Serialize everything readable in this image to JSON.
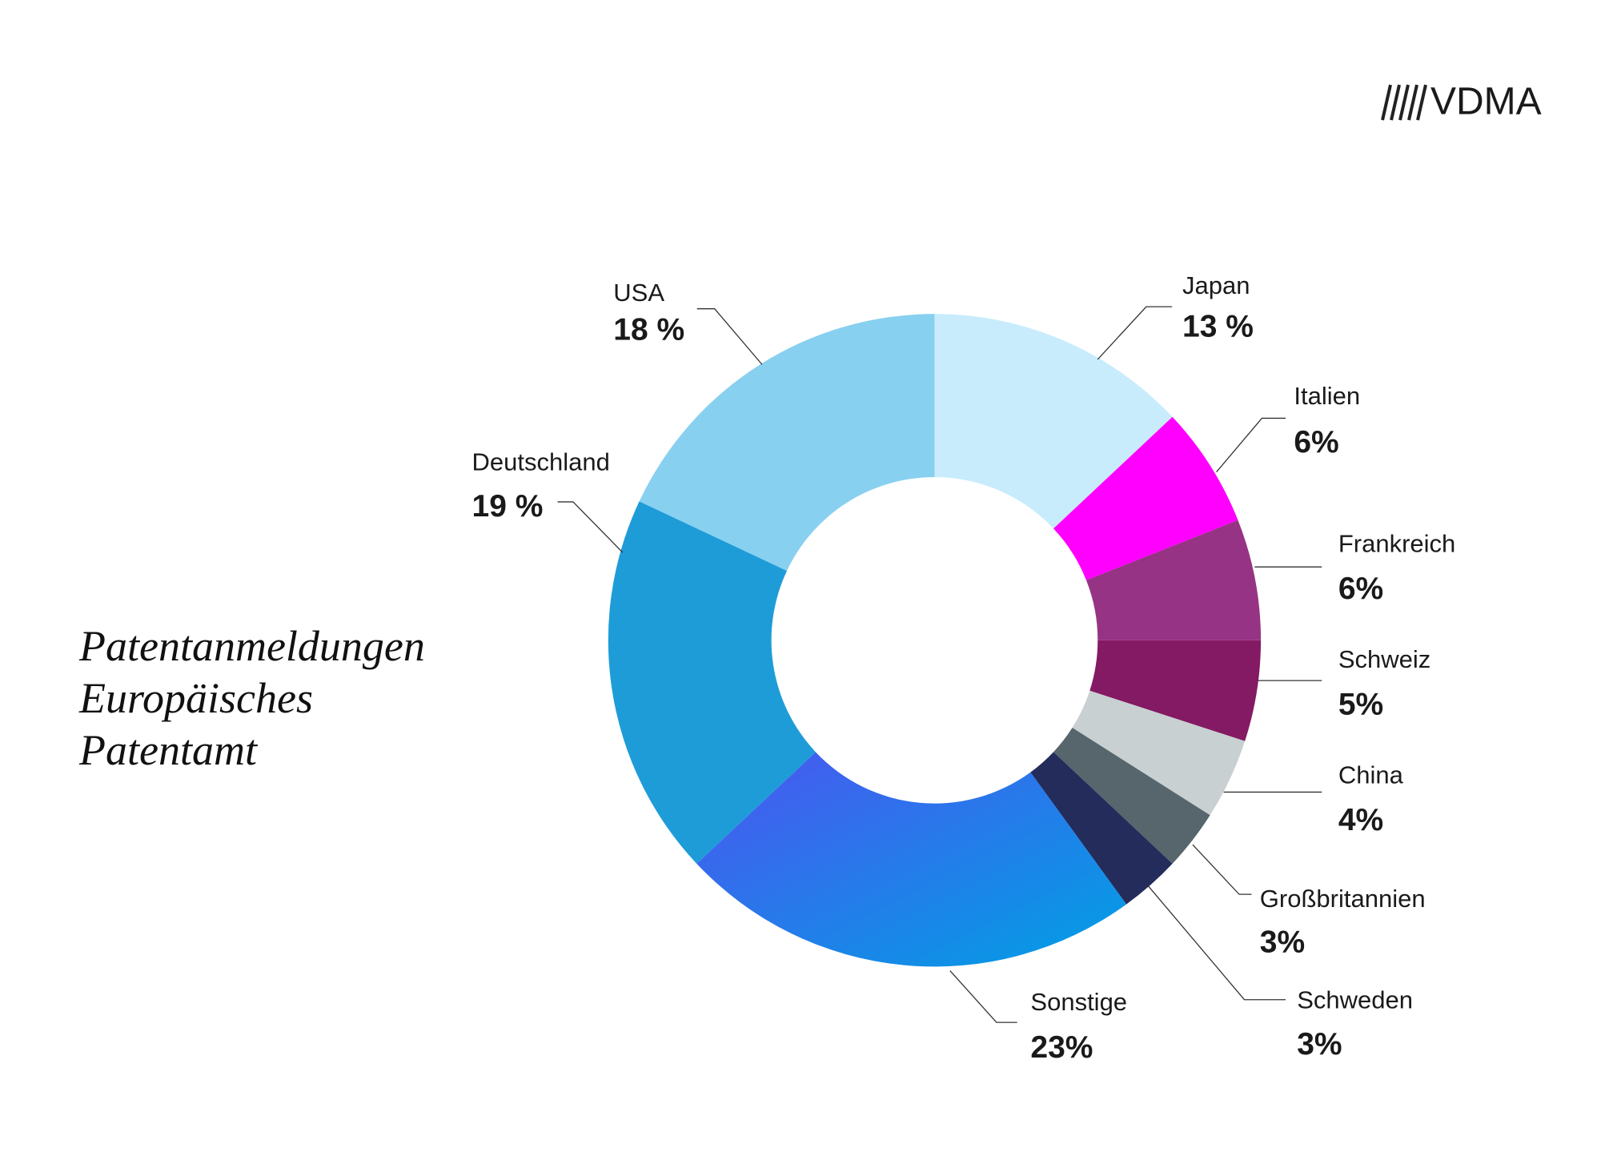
{
  "logo": "VDMA",
  "chart_data": {
    "type": "pie",
    "title": "Patentanmeldungen Europäisches Patentamt",
    "categories": [
      "Japan",
      "Italien",
      "Frankreich",
      "Schweiz",
      "China",
      "Großbritannien",
      "Schweden",
      "Sonstige",
      "Deutschland",
      "USA"
    ],
    "values": [
      13,
      6,
      6,
      5,
      4,
      3,
      3,
      23,
      19,
      18
    ],
    "value_labels": [
      "13 %",
      "6%",
      "6%",
      "5%",
      "4%",
      "3%",
      "3%",
      "23%",
      "19 %",
      "18 %"
    ],
    "colors": [
      "#c8ecfc",
      "#ff00ff",
      "#963384",
      "#841a63",
      "#c8d0d2",
      "#56666c",
      "#232c5a",
      "#2f78e8",
      "#1e9cd8",
      "#88d0f0"
    ],
    "donut": true
  }
}
